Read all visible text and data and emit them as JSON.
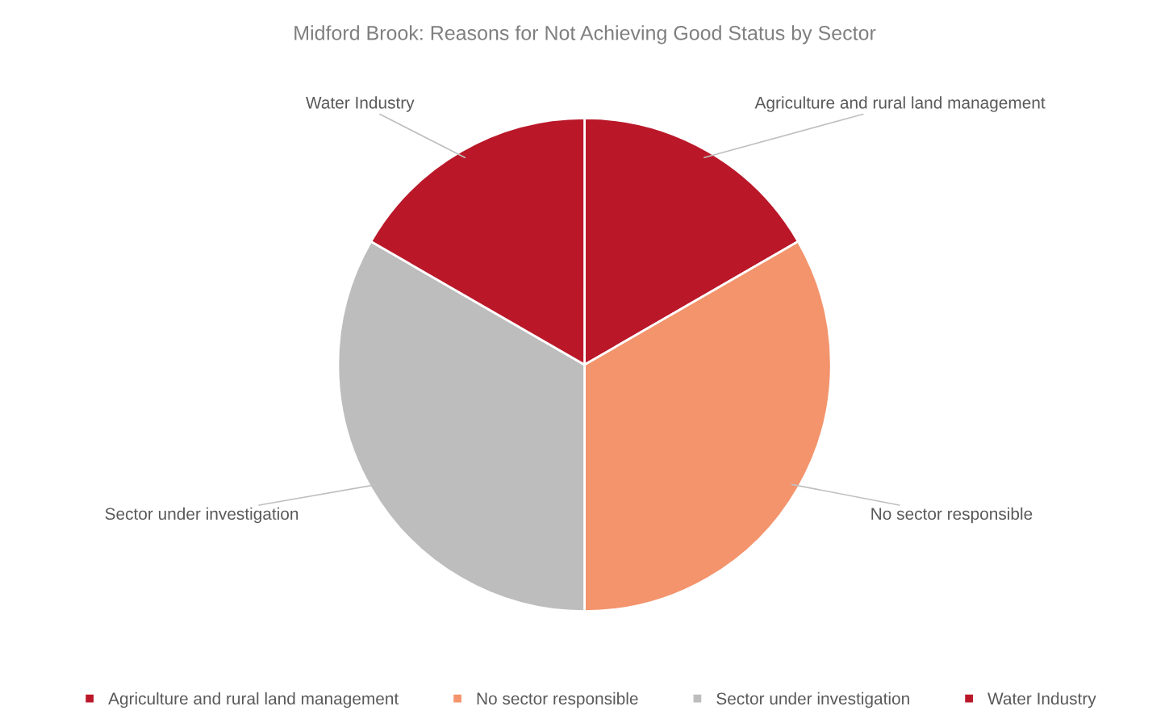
{
  "chart_data": {
    "type": "pie",
    "title": "Midford Brook: Reasons for Not Achieving Good Status by Sector",
    "categories": [
      "Agriculture and rural land management",
      "No sector responsible",
      "Sector under investigation",
      "Water Industry"
    ],
    "values": [
      16.67,
      33.33,
      33.33,
      16.67
    ],
    "colors": [
      "#ba1829",
      "#f3946c",
      "#bdbdbd",
      "#ba1829"
    ],
    "legend": "bottom"
  }
}
